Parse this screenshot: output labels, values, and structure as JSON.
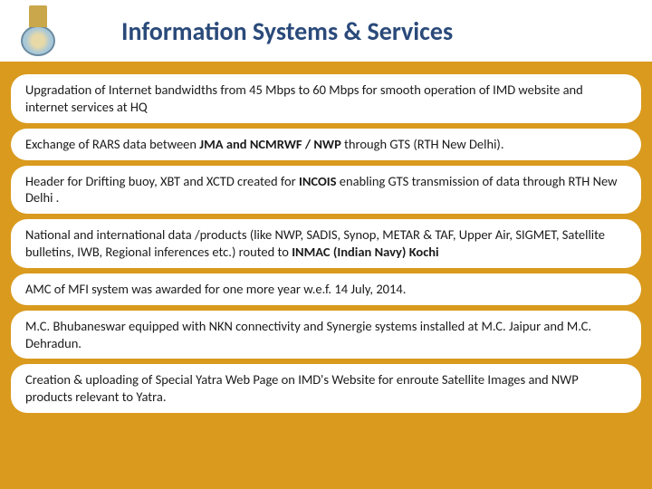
{
  "title": "Information Systems & Services",
  "colors": {
    "background": "#d99a1e",
    "box_bg": "#ffffff",
    "title_color": "#2a4a7a",
    "text_color": "#1a1a1a"
  },
  "typography": {
    "title_fontsize": 28,
    "body_fontsize": 14.5,
    "font_family": "Calibri"
  },
  "bullets": [
    "Upgradation of Internet bandwidths from 45 Mbps to 60 Mbps  for smooth operation of IMD website and internet services at  HQ",
    "Exchange of  RARS data between <strong>JMA and NCMRWF / NWP</strong> through GTS (RTH New Delhi).",
    "Header for Drifting buoy, XBT and XCTD created for <strong>INCOIS</strong> enabling GTS transmission of data through RTH New Delhi .",
    "National and international data /products (like NWP, SADIS, Synop, METAR & TAF, Upper Air, SIGMET,  Satellite bulletins, IWB, Regional inferences etc.) routed to <strong>INMAC (Indian Navy) Kochi</strong>",
    "AMC  of MFI system was awarded for one more year   w.e.f. 14 July, 2014.",
    "M.C. Bhubaneswar equipped with NKN connectivity and Synergie systems installed  at M.C. Jaipur and M.C. Dehradun.",
    "Creation & uploading of Special Yatra Web Page on IMD's Website  for enroute Satellite Images and NWP products relevant to Yatra."
  ]
}
